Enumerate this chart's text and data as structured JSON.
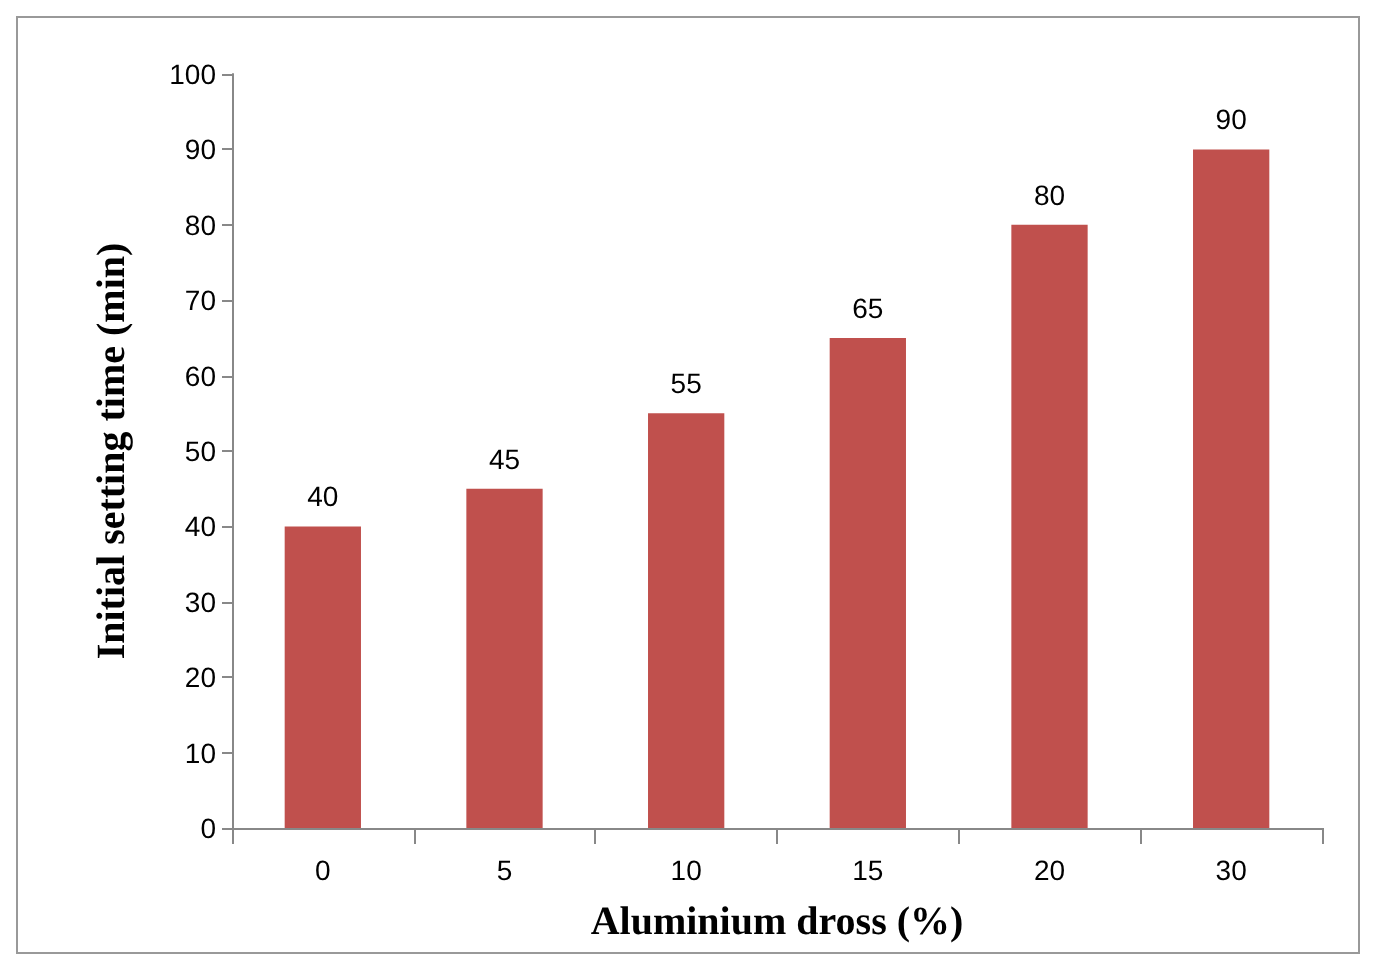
{
  "chart_data": {
    "type": "bar",
    "xlabel": "Aluminium dross (%)",
    "ylabel": "Initial setting time (min)",
    "categories": [
      "0",
      "5",
      "10",
      "15",
      "20",
      "30"
    ],
    "values": [
      40,
      45,
      55,
      65,
      80,
      90
    ],
    "color": "#c0504d",
    "ylim": [
      0,
      100
    ],
    "yticks": [
      0,
      10,
      20,
      30,
      40,
      50,
      60,
      70,
      80,
      90,
      100
    ],
    "data_labels": true
  }
}
